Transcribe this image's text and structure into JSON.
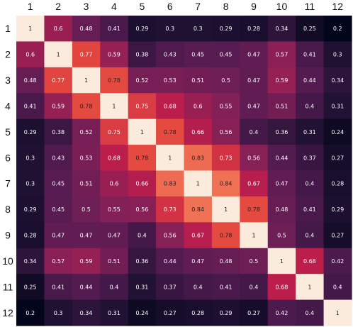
{
  "chart_data": {
    "type": "heatmap",
    "title": "",
    "xlabel": "",
    "ylabel": "",
    "x_labels": [
      "1",
      "2",
      "3",
      "4",
      "5",
      "6",
      "7",
      "8",
      "9",
      "10",
      "11",
      "12"
    ],
    "y_labels": [
      "1",
      "2",
      "3",
      "4",
      "5",
      "6",
      "7",
      "8",
      "9",
      "10",
      "11",
      "12"
    ],
    "value_range": [
      0.2,
      1
    ],
    "colormap": "rocket",
    "values": [
      [
        1,
        0.6,
        0.48,
        0.41,
        0.29,
        0.3,
        0.3,
        0.29,
        0.28,
        0.34,
        0.25,
        0.2
      ],
      [
        0.6,
        1,
        0.77,
        0.59,
        0.38,
        0.43,
        0.45,
        0.45,
        0.47,
        0.57,
        0.41,
        0.3
      ],
      [
        0.48,
        0.77,
        1,
        0.78,
        0.52,
        0.53,
        0.51,
        0.5,
        0.47,
        0.59,
        0.44,
        0.34
      ],
      [
        0.41,
        0.59,
        0.78,
        1,
        0.75,
        0.68,
        0.6,
        0.55,
        0.47,
        0.51,
        0.4,
        0.31
      ],
      [
        0.29,
        0.38,
        0.52,
        0.75,
        1,
        0.78,
        0.66,
        0.56,
        0.4,
        0.36,
        0.31,
        0.24
      ],
      [
        0.3,
        0.43,
        0.53,
        0.68,
        0.78,
        1,
        0.83,
        0.73,
        0.56,
        0.44,
        0.37,
        0.27
      ],
      [
        0.3,
        0.45,
        0.51,
        0.6,
        0.66,
        0.83,
        1,
        0.84,
        0.67,
        0.47,
        0.4,
        0.28
      ],
      [
        0.29,
        0.45,
        0.5,
        0.55,
        0.56,
        0.73,
        0.84,
        1,
        0.78,
        0.48,
        0.41,
        0.29
      ],
      [
        0.28,
        0.47,
        0.47,
        0.47,
        0.4,
        0.56,
        0.67,
        0.78,
        1,
        0.5,
        0.4,
        0.27
      ],
      [
        0.34,
        0.57,
        0.59,
        0.51,
        0.36,
        0.44,
        0.47,
        0.48,
        0.5,
        1,
        0.68,
        0.42
      ],
      [
        0.25,
        0.41,
        0.44,
        0.4,
        0.31,
        0.37,
        0.4,
        0.41,
        0.4,
        0.68,
        1,
        0.4
      ],
      [
        0.2,
        0.3,
        0.34,
        0.31,
        0.24,
        0.27,
        0.28,
        0.29,
        0.27,
        0.42,
        0.4,
        1
      ]
    ],
    "grid": false,
    "legend": "none"
  }
}
